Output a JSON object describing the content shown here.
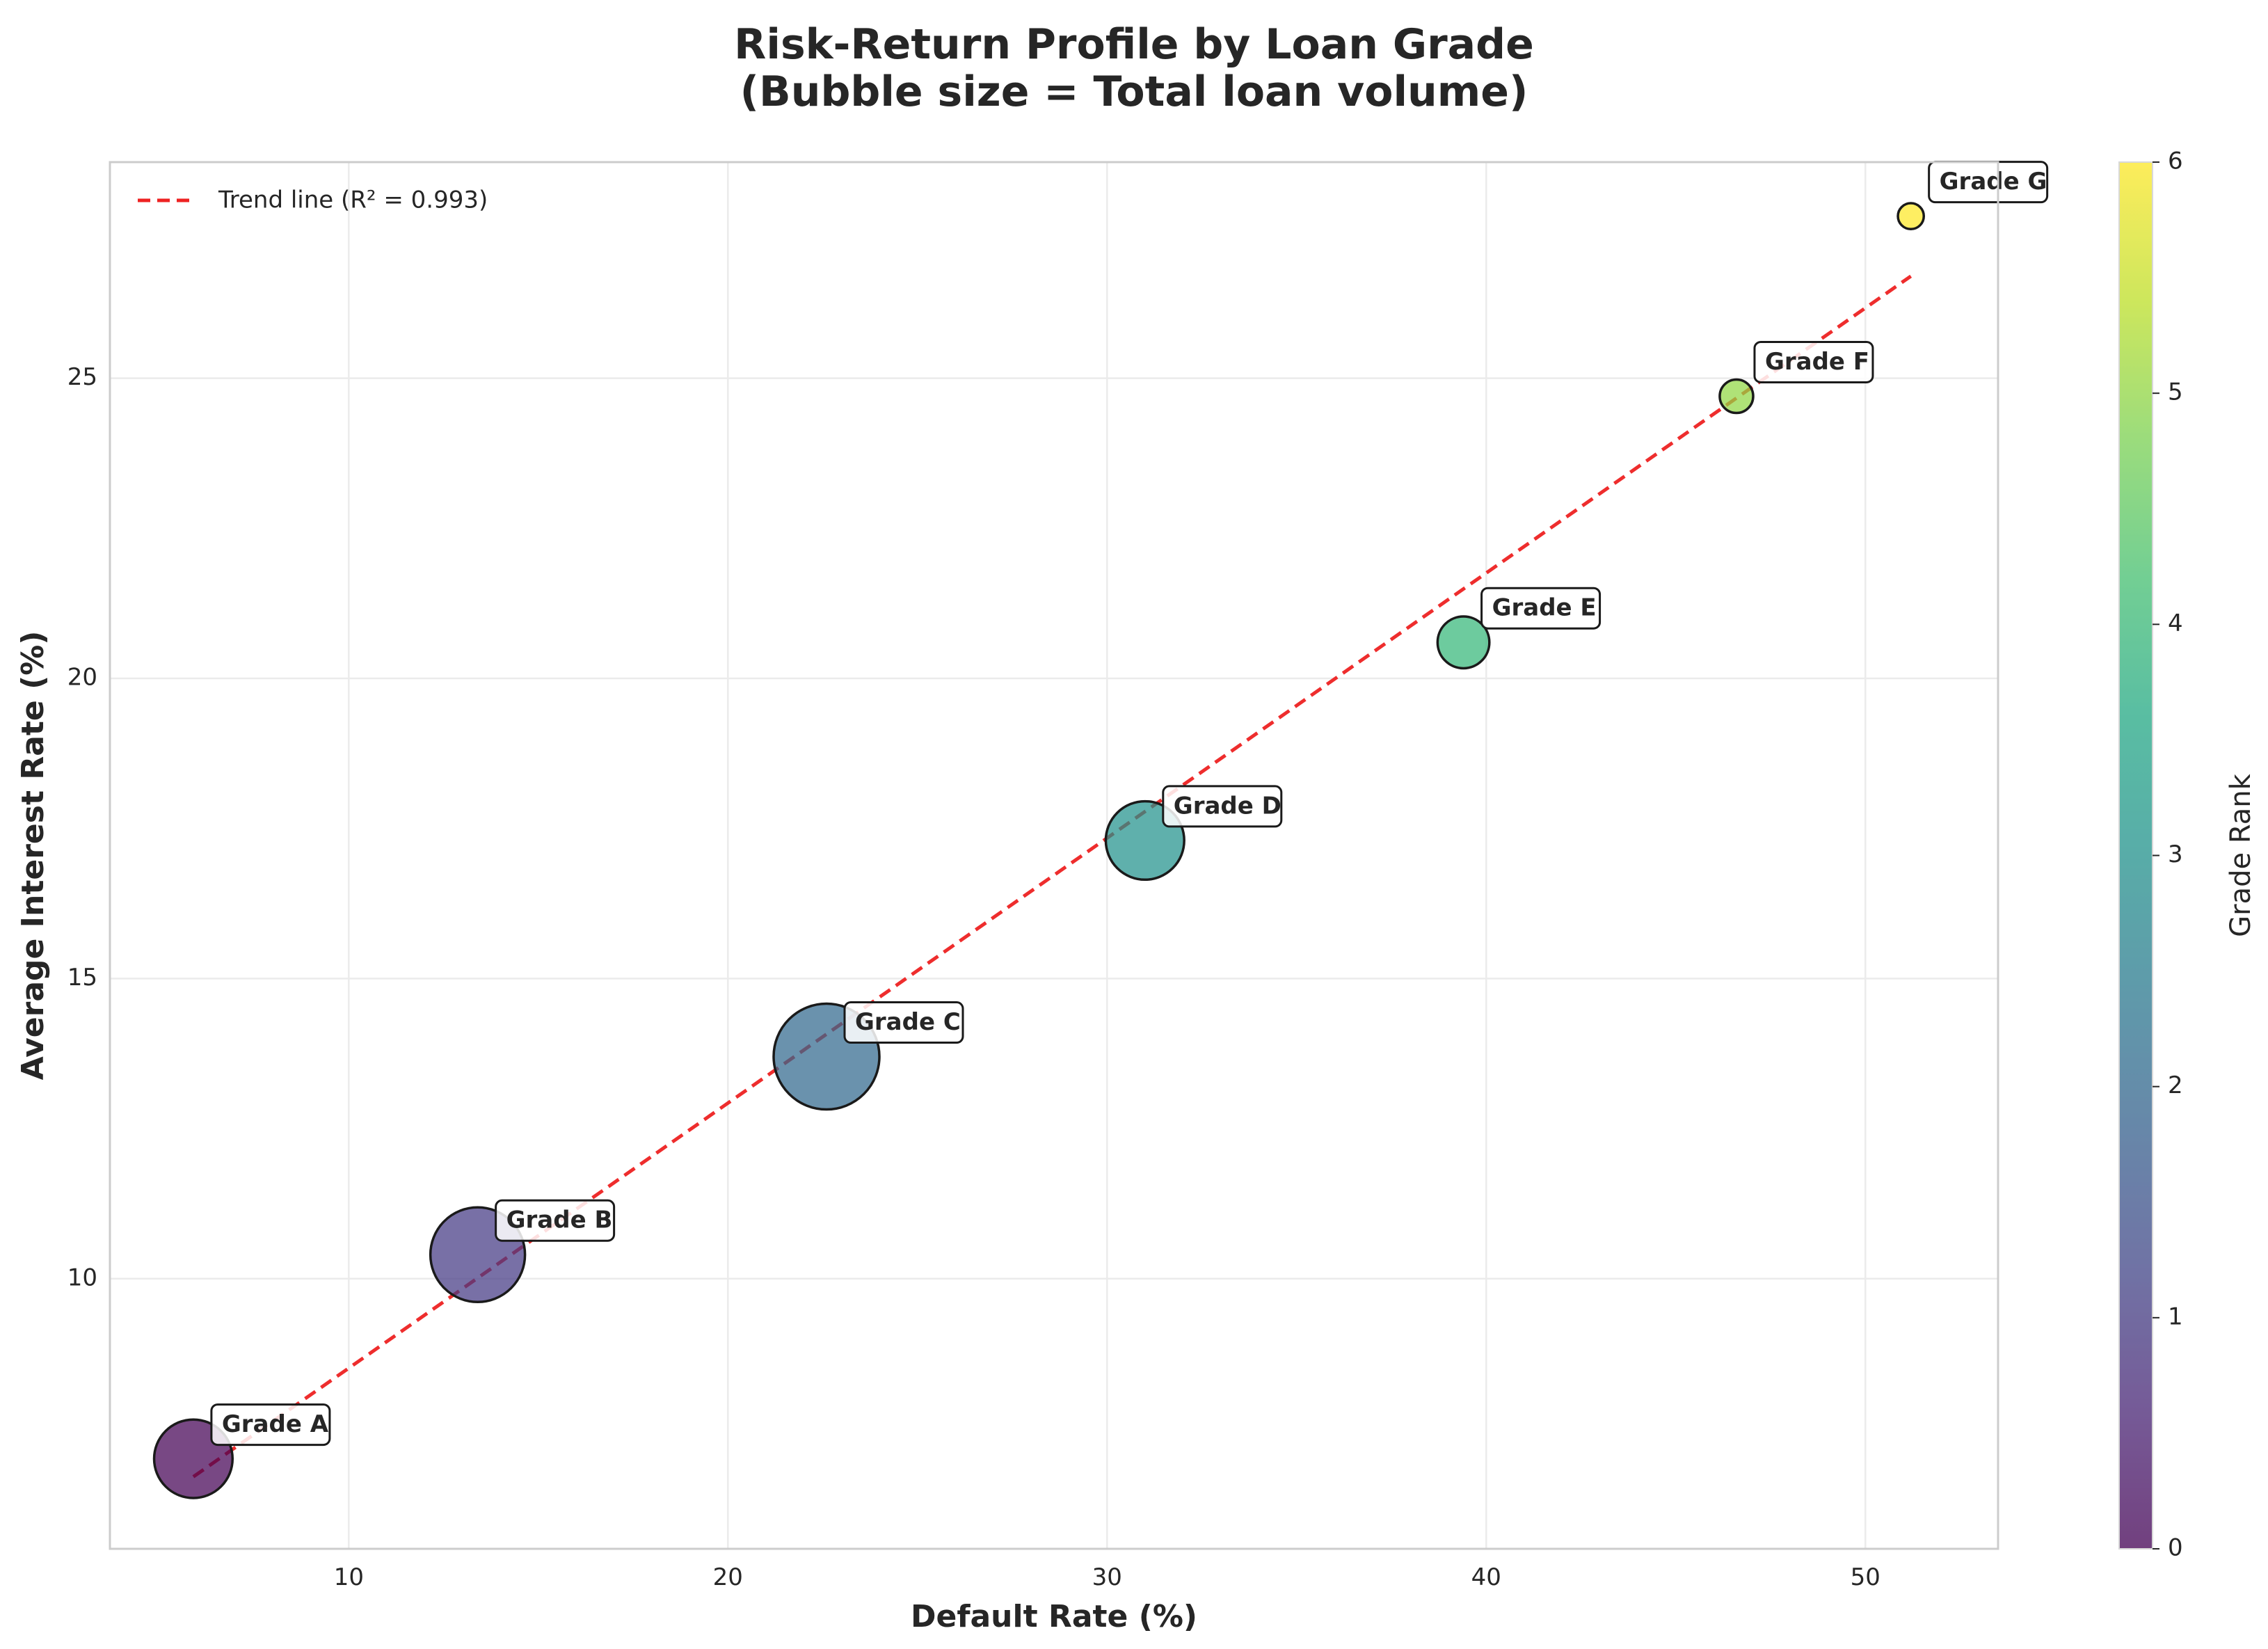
{
  "chart_data": {
    "type": "scatter",
    "title": "Risk-Return Profile by Loan Grade",
    "subtitle": "(Bubble size = Total loan volume)",
    "xlabel": "Default Rate (%)",
    "ylabel": "Average Interest Rate (%)",
    "xlim": [
      3.7,
      53.5
    ],
    "ylim": [
      5.5,
      28.6
    ],
    "xticks": [
      10,
      20,
      30,
      40,
      50
    ],
    "yticks": [
      10,
      15,
      20,
      25
    ],
    "grid": true,
    "legend_position": "top-left",
    "legend_entries": [
      "Trend line (R² = 0.993)"
    ],
    "colorbar": {
      "label": "Grade Rank",
      "range": [
        0,
        6
      ],
      "ticks": [
        0,
        1,
        2,
        3,
        4,
        5,
        6
      ],
      "colormap": "viridis"
    },
    "points": [
      {
        "label": "Grade A",
        "x": 5.9,
        "y": 7.0,
        "rank": 0,
        "volume": 0.55,
        "color": "#440154"
      },
      {
        "label": "Grade B",
        "x": 13.4,
        "y": 10.4,
        "rank": 1,
        "volume": 0.8,
        "color": "#443983"
      },
      {
        "label": "Grade C",
        "x": 22.6,
        "y": 13.7,
        "rank": 2,
        "volume": 1.0,
        "color": "#31688e"
      },
      {
        "label": "Grade D",
        "x": 31.0,
        "y": 17.3,
        "rank": 3,
        "volume": 0.55,
        "color": "#21918c"
      },
      {
        "label": "Grade E",
        "x": 39.4,
        "y": 20.6,
        "rank": 4,
        "volume": 0.24,
        "color": "#35b779"
      },
      {
        "label": "Grade F",
        "x": 46.6,
        "y": 24.7,
        "rank": 5,
        "volume": 0.1,
        "color": "#90d743"
      },
      {
        "label": "Grade G",
        "x": 51.2,
        "y": 27.7,
        "rank": 6,
        "volume": 0.06,
        "color": "#fde725"
      }
    ],
    "trend_line": {
      "x": [
        5.9,
        51.2
      ],
      "y": [
        6.7,
        26.7
      ],
      "color": "#ee2222",
      "style": "dashed"
    }
  }
}
